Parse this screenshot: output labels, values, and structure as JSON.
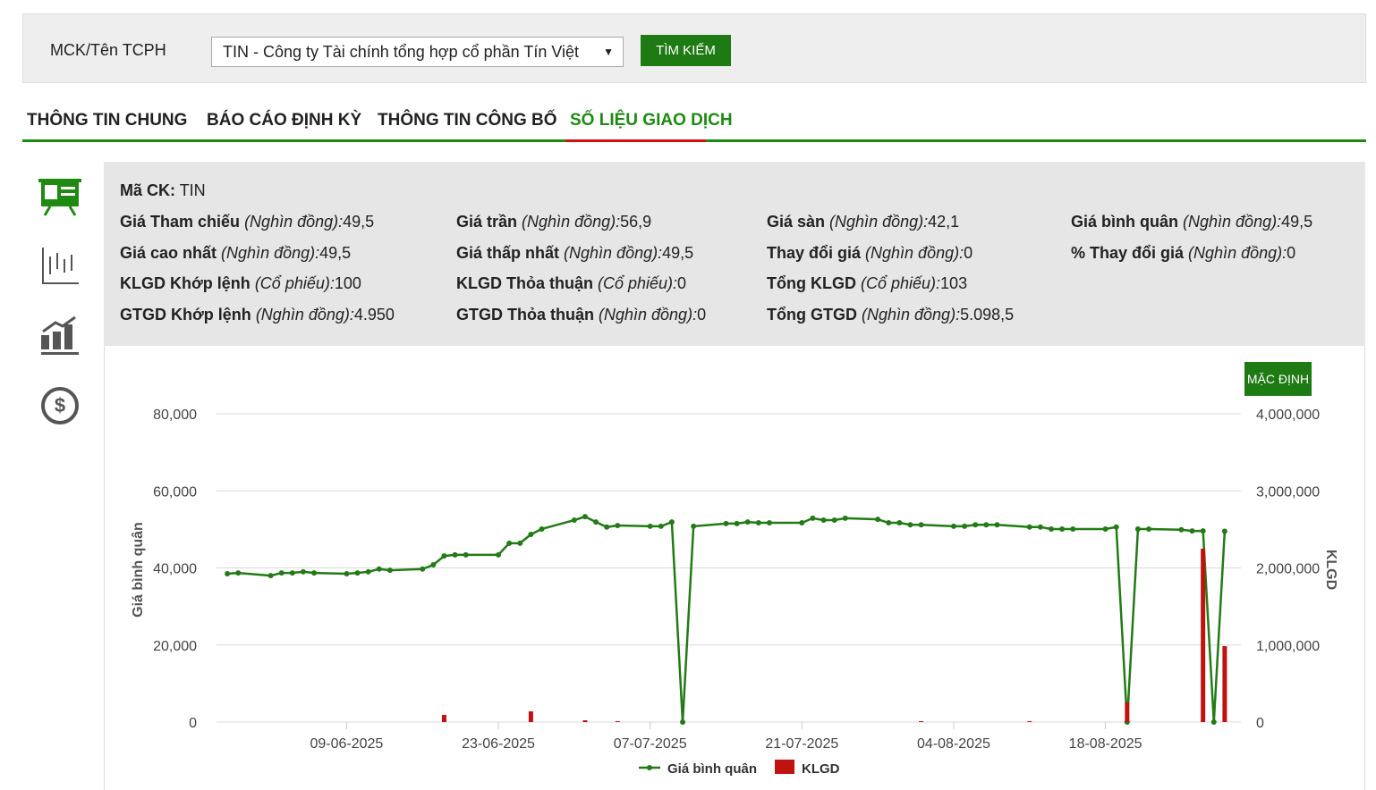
{
  "search": {
    "label": "MCK/Tên TCPH",
    "selected": "TIN - Công ty Tài chính tổng hợp cổ phần Tín Việt",
    "button": "TÌM KIẾM"
  },
  "tabs": {
    "items": [
      "THÔNG TIN CHUNG",
      "BÁO CÁO ĐỊNH KỲ",
      "THÔNG TIN CÔNG BỐ",
      "SỐ LIỆU GIAO DỊCH"
    ],
    "active": 3
  },
  "info": {
    "code_label": "Mã CK:",
    "code": "TIN",
    "rows": [
      [
        {
          "label": "Giá Tham chiếu",
          "unit": "(Nghìn đồng):",
          "value": "49,5"
        },
        {
          "label": "Giá trần",
          "unit": "(Nghìn đồng):",
          "value": "56,9"
        },
        {
          "label": "Giá sàn",
          "unit": "(Nghìn đồng):",
          "value": "42,1"
        },
        {
          "label": "Giá bình quân",
          "unit": "(Nghìn đồng):",
          "value": "49,5"
        }
      ],
      [
        {
          "label": "Giá cao nhất",
          "unit": "(Nghìn đồng):",
          "value": "49,5"
        },
        {
          "label": "Giá thấp nhất",
          "unit": "(Nghìn đồng):",
          "value": "49,5"
        },
        {
          "label": "Thay đổi giá",
          "unit": "(Nghìn đồng):",
          "value": "0"
        },
        {
          "label": "% Thay đổi giá",
          "unit": "(Nghìn đồng):",
          "value": "0"
        }
      ],
      [
        {
          "label": "KLGD Khớp lệnh",
          "unit": "(Cổ phiếu):",
          "value": "100"
        },
        {
          "label": "KLGD Thỏa thuận",
          "unit": "(Cổ phiếu):",
          "value": "0"
        },
        {
          "label": "Tổng KLGD",
          "unit": "(Cổ phiếu):",
          "value": "103"
        }
      ],
      [
        {
          "label": "GTGD Khớp lệnh",
          "unit": "(Nghìn đồng):",
          "value": "4.950"
        },
        {
          "label": "GTGD Thỏa thuận",
          "unit": "(Nghìn đồng):",
          "value": "0"
        },
        {
          "label": "Tổng GTGD",
          "unit": "(Nghìn đồng):",
          "value": "5.098,5"
        }
      ]
    ]
  },
  "reset_button": "MẶC ĐỊNH",
  "chart_data": {
    "type": "line-bar",
    "y_label": "Giá bình quân",
    "y2_label": "KLGD",
    "grid": true,
    "x": [
      "29-05-2025",
      "30-05-2025",
      "02-06-2025",
      "03-06-2025",
      "04-06-2025",
      "05-06-2025",
      "06-06-2025",
      "09-06-2025",
      "10-06-2025",
      "11-06-2025",
      "12-06-2025",
      "13-06-2025",
      "16-06-2025",
      "17-06-2025",
      "18-06-2025",
      "19-06-2025",
      "20-06-2025",
      "23-06-2025",
      "24-06-2025",
      "25-06-2025",
      "26-06-2025",
      "27-06-2025",
      "30-06-2025",
      "01-07-2025",
      "02-07-2025",
      "03-07-2025",
      "04-07-2025",
      "07-07-2025",
      "08-07-2025",
      "09-07-2025",
      "10-07-2025",
      "11-07-2025",
      "14-07-2025",
      "15-07-2025",
      "16-07-2025",
      "17-07-2025",
      "18-07-2025",
      "21-07-2025",
      "22-07-2025",
      "23-07-2025",
      "24-07-2025",
      "25-07-2025",
      "28-07-2025",
      "29-07-2025",
      "30-07-2025",
      "31-07-2025",
      "01-08-2025",
      "04-08-2025",
      "05-08-2025",
      "06-08-2025",
      "07-08-2025",
      "08-08-2025",
      "11-08-2025",
      "12-08-2025",
      "13-08-2025",
      "14-08-2025",
      "15-08-2025",
      "18-08-2025",
      "19-08-2025",
      "20-08-2025",
      "21-08-2025",
      "22-08-2025",
      "25-08-2025",
      "26-08-2025",
      "27-08-2025",
      "28-08-2025",
      "29-08-2025"
    ],
    "series": [
      {
        "name": "Giá bình quân",
        "color": "#237a16",
        "kind": "line",
        "values": [
          38500,
          38700,
          38000,
          38700,
          38700,
          39000,
          38700,
          38500,
          38700,
          39000,
          39700,
          39400,
          39700,
          40800,
          43100,
          43400,
          43400,
          43400,
          46400,
          46400,
          48700,
          50100,
          52400,
          53300,
          51900,
          50600,
          51000,
          50800,
          50800,
          51900,
          0,
          50800,
          51500,
          51500,
          51900,
          51700,
          51700,
          51700,
          52900,
          52400,
          52400,
          52900,
          52600,
          51700,
          51700,
          51200,
          51200,
          50800,
          50800,
          51200,
          51200,
          51200,
          50600,
          50600,
          50100,
          50100,
          50100,
          50100,
          50600,
          0,
          50100,
          50100,
          49900,
          49600,
          49600,
          0,
          49500
        ]
      },
      {
        "name": "KLGD",
        "color": "#c0120f",
        "kind": "bar",
        "axis": "y2",
        "values": [
          null,
          null,
          null,
          null,
          null,
          null,
          null,
          null,
          null,
          null,
          null,
          null,
          null,
          null,
          93000,
          null,
          null,
          null,
          null,
          null,
          139000,
          null,
          null,
          23000,
          null,
          null,
          12000,
          null,
          null,
          null,
          null,
          null,
          null,
          null,
          null,
          null,
          null,
          null,
          null,
          null,
          null,
          null,
          null,
          null,
          null,
          null,
          12000,
          null,
          null,
          null,
          null,
          null,
          12000,
          null,
          null,
          null,
          null,
          null,
          null,
          255000,
          null,
          null,
          null,
          null,
          2250000,
          null,
          985000
        ]
      }
    ],
    "xlim": [
      "28-05-2025",
      "30-08-2025"
    ],
    "xticks": [
      "09-06-2025",
      "23-06-2025",
      "07-07-2025",
      "21-07-2025",
      "04-08-2025",
      "18-08-2025"
    ],
    "ylim": [
      0,
      80000
    ],
    "yticks": [
      0,
      {
        "value": 20000,
        "label": "20,000"
      },
      {
        "value": 40000,
        "label": "40,000"
      },
      {
        "value": 60000,
        "label": "60,000"
      },
      {
        "value": 80000,
        "label": "80,000"
      }
    ],
    "y2lim": [
      0,
      4000000
    ],
    "y2ticks": [
      0,
      {
        "value": 1000000,
        "label": "1,000,000"
      },
      {
        "value": 2000000,
        "label": "2,000,000"
      },
      {
        "value": 3000000,
        "label": "3,000,000"
      },
      {
        "value": 4000000,
        "label": "4,000,000"
      }
    ]
  }
}
